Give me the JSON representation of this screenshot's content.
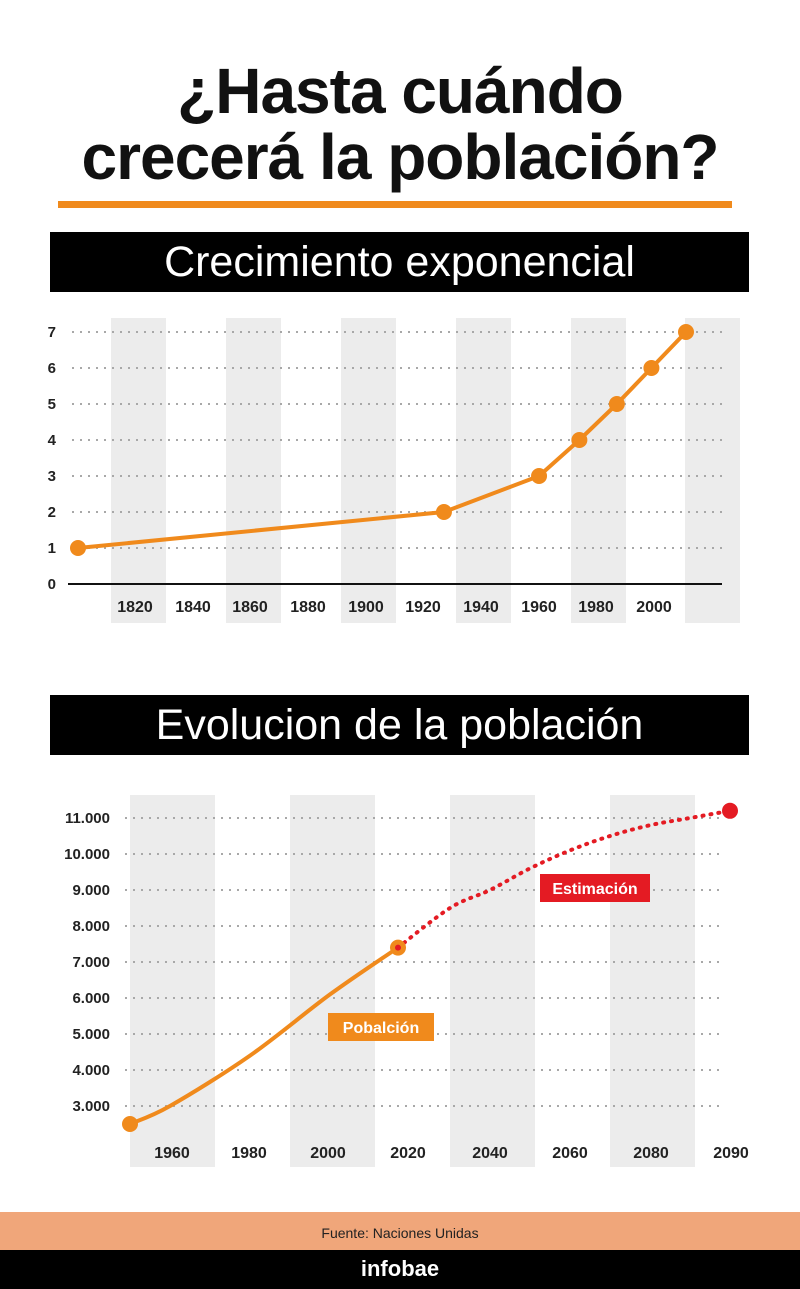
{
  "title_line1": "¿Hasta cuándo",
  "title_line2": "crecerá la población?",
  "chart_data": [
    {
      "type": "line",
      "title": "Crecimiento exponencial",
      "x_ticks": [
        1820,
        1840,
        1860,
        1880,
        1900,
        1920,
        1940,
        1960,
        1980,
        2000
      ],
      "y_ticks": [
        0,
        1,
        2,
        3,
        4,
        5,
        6,
        7
      ],
      "xlim": [
        1800,
        2030
      ],
      "ylim": [
        0,
        7
      ],
      "grid": true,
      "series": [
        {
          "color": "#f08a1c",
          "x": [
            1800,
            1927,
            1960,
            1974,
            1987,
            1999,
            2011
          ],
          "y": [
            1,
            2,
            3,
            4,
            5,
            6,
            7
          ]
        }
      ]
    },
    {
      "type": "line",
      "title": "Evolucion de la población",
      "x_ticks": [
        "1960",
        "1980",
        "2000",
        "2020",
        "2040",
        "2060",
        "2080",
        "2090"
      ],
      "y_ticks": [
        "3.000",
        "4.000",
        "5.000",
        "6.000",
        "7.000",
        "8.000",
        "9.000",
        "10.000",
        "11.000"
      ],
      "xlim": [
        1950,
        2100
      ],
      "ylim": [
        2500,
        11300
      ],
      "grid": true,
      "series": [
        {
          "name": "Pobalción",
          "color": "#f08a1c",
          "style": "solid",
          "x": [
            1950,
            1960,
            1980,
            2000,
            2017
          ],
          "y": [
            2500,
            3000,
            4400,
            6100,
            7400
          ]
        },
        {
          "name": "Estimación",
          "color": "#e41b23",
          "style": "dotted",
          "x": [
            2017,
            2030,
            2040,
            2050,
            2060,
            2070,
            2080,
            2090,
            2100
          ],
          "y": [
            7400,
            8500,
            9000,
            9600,
            10100,
            10500,
            10800,
            11000,
            11200
          ]
        }
      ]
    }
  ],
  "source": "Fuente: Naciones Unidas",
  "brand": "infobae"
}
